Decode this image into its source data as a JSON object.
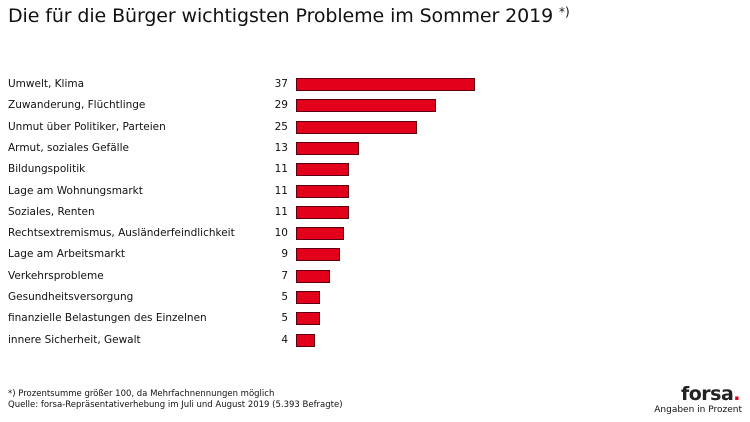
{
  "chart_data": {
    "type": "bar",
    "orientation": "horizontal",
    "title": "Die für die Bürger wichtigsten Probleme im Sommer 2019",
    "title_marker": "*)",
    "categories": [
      "Umwelt, Klima",
      "Zuwanderung, Flüchtlinge",
      "Unmut über Politiker, Parteien",
      "Armut, soziales Gefälle",
      "Bildungspolitik",
      "Lage am Wohnungsmarkt",
      "Soziales, Renten",
      "Rechtsextremismus, Ausländerfeindlichkeit",
      "Lage am Arbeitsmarkt",
      "Verkehrsprobleme",
      "Gesundheitsversorgung",
      "finanzielle Belastungen des Einzelnen",
      "innere Sicherheit, Gewalt"
    ],
    "values": [
      37,
      29,
      25,
      13,
      11,
      11,
      11,
      10,
      9,
      7,
      5,
      5,
      4
    ],
    "bar_color": "#e3001b",
    "xlim": [
      0,
      40
    ],
    "unit_label": "Angaben in Prozent",
    "grid": false
  },
  "footnotes": {
    "note": "*) Prozentsumme größer 100, da Mehrfachnennungen möglich",
    "source": "Quelle: forsa-Repräsentativerhebung im Juli und August 2019 (5.393 Befragte)"
  },
  "logo": {
    "text": "forsa",
    "dot": "."
  }
}
